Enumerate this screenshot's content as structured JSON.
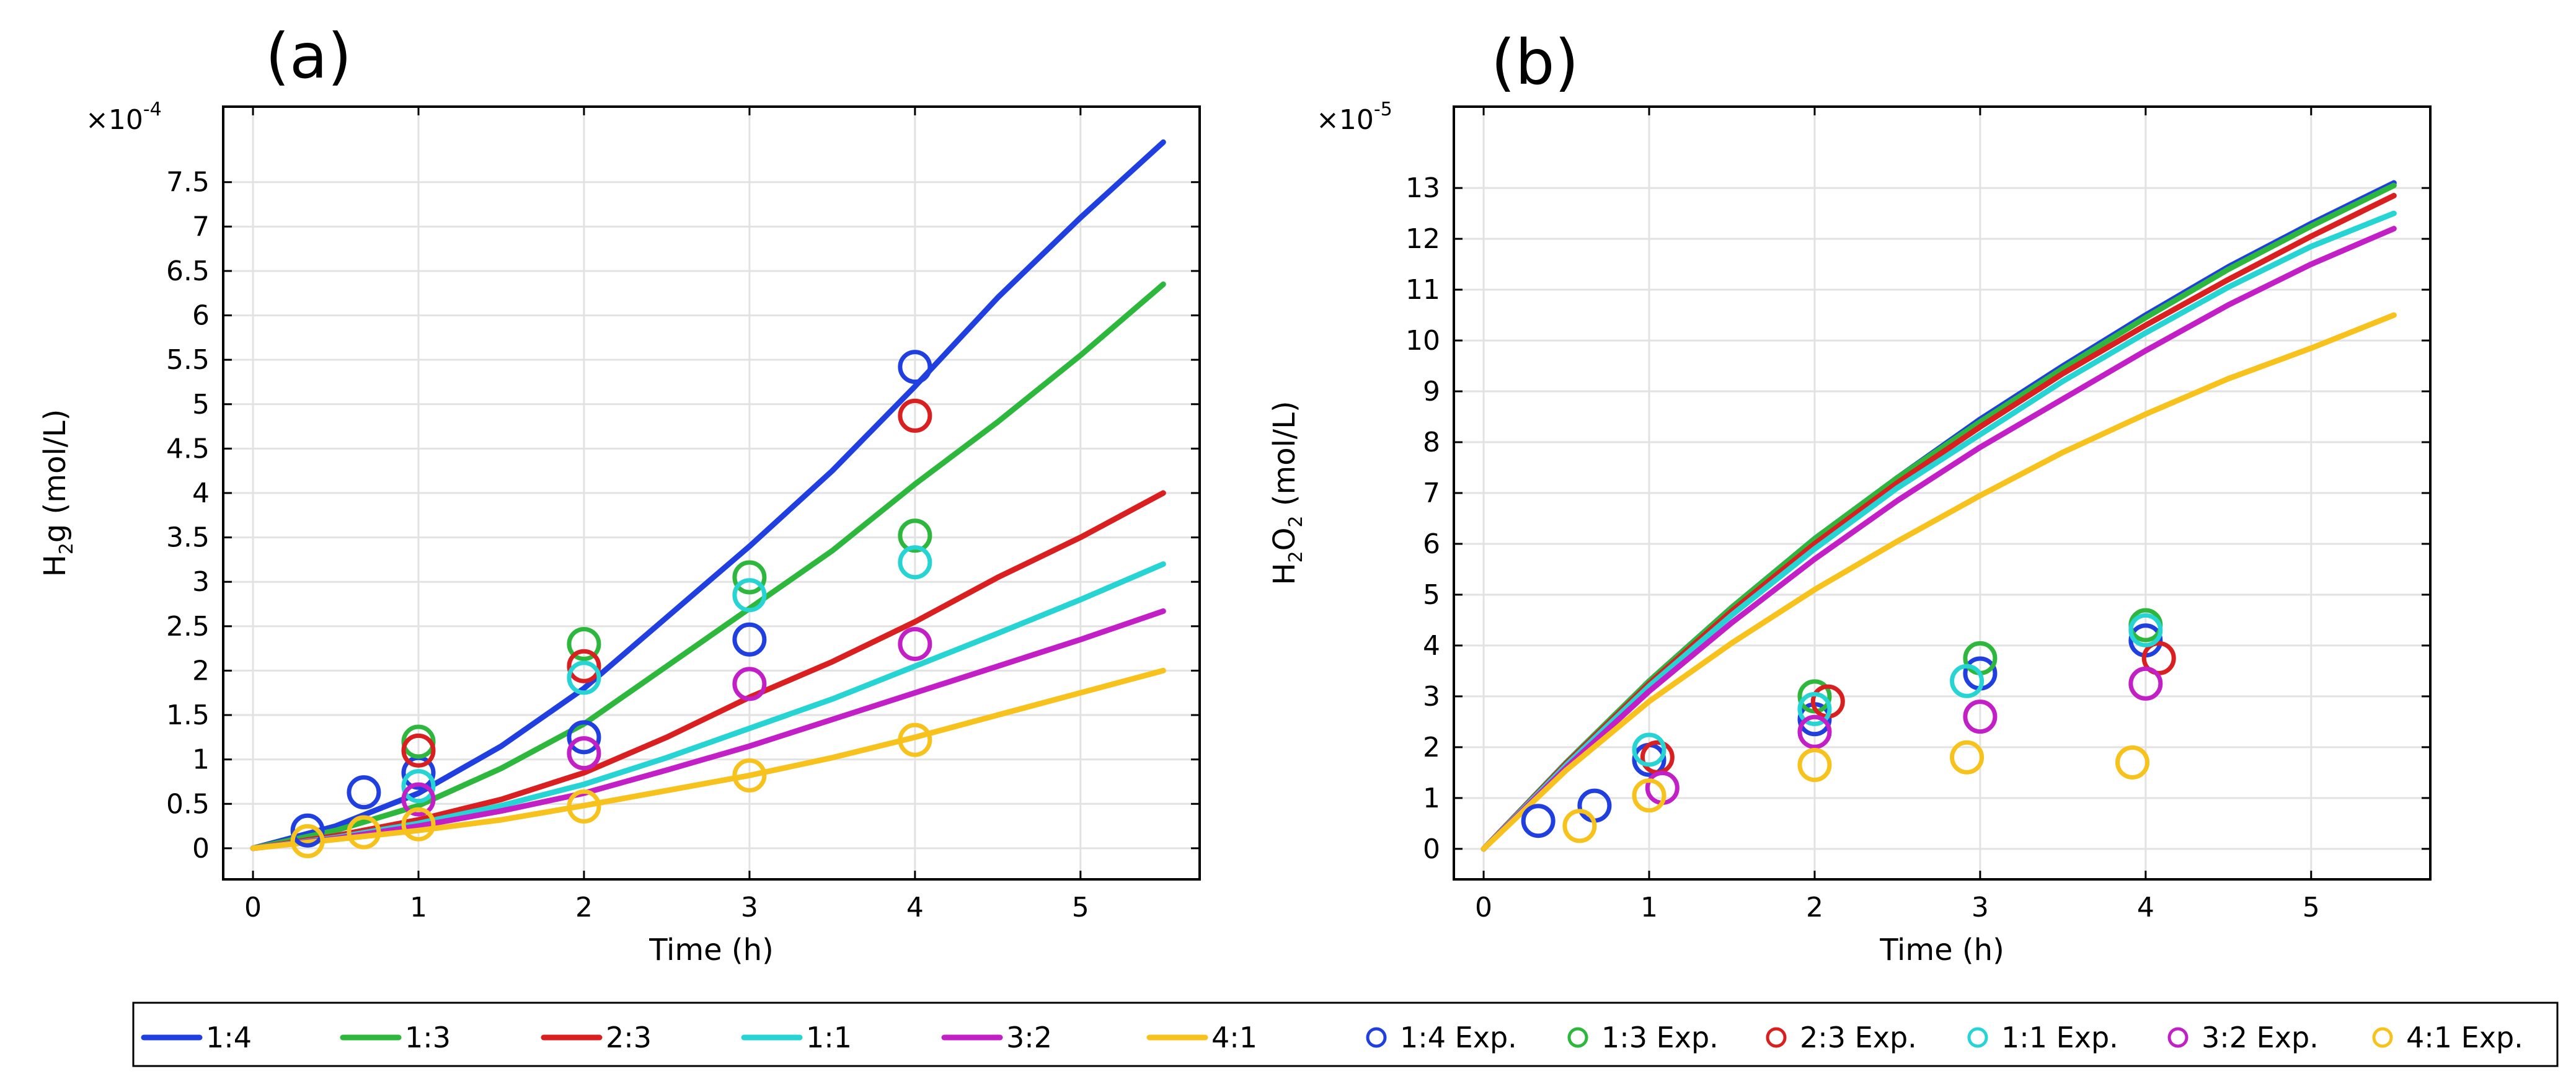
{
  "chart_data": [
    {
      "type": "line",
      "panel_label": "(a)",
      "xlabel": "Time (h)",
      "ylabel": {
        "base": "H",
        "sub": "2",
        "rest": "g (mol/L)"
      },
      "exponent": {
        "prefix": "×10",
        "power": "-4"
      },
      "xlim": [
        -0.18,
        5.72
      ],
      "ylim": [
        -0.35,
        8.35
      ],
      "xticks": [
        0,
        1,
        2,
        3,
        4,
        5
      ],
      "xtick_labels": [
        "0",
        "1",
        "2",
        "3",
        "4",
        "5"
      ],
      "yticks": [
        0,
        0.5,
        1,
        1.5,
        2,
        2.5,
        3,
        3.5,
        4,
        4.5,
        5,
        5.5,
        6,
        6.5,
        7,
        7.5
      ],
      "ytick_labels": [
        "0",
        "0.5",
        "1",
        "1.5",
        "2",
        "2.5",
        "3",
        "3.5",
        "4",
        "4.5",
        "5",
        "5.5",
        "6",
        "6.5",
        "7",
        "7.5"
      ],
      "grid": true,
      "series": [
        {
          "name": "1:4",
          "color": "#1f3fe0",
          "x": [
            0,
            0.5,
            1,
            1.5,
            2,
            2.5,
            3,
            3.5,
            4,
            4.5,
            5,
            5.5
          ],
          "values": [
            0,
            0.25,
            0.62,
            1.15,
            1.8,
            2.6,
            3.4,
            4.25,
            5.2,
            6.2,
            7.1,
            7.95
          ]
        },
        {
          "name": "1:3",
          "color": "#2db83d",
          "x": [
            0,
            0.5,
            1,
            1.5,
            2,
            2.5,
            3,
            3.5,
            4,
            4.5,
            5,
            5.5
          ],
          "values": [
            0,
            0.2,
            0.48,
            0.9,
            1.4,
            2.05,
            2.7,
            3.35,
            4.1,
            4.8,
            5.55,
            6.35
          ]
        },
        {
          "name": "2:3",
          "color": "#d91f1f",
          "x": [
            0,
            0.5,
            1,
            1.5,
            2,
            2.5,
            3,
            3.5,
            4,
            4.5,
            5,
            5.5
          ],
          "values": [
            0,
            0.14,
            0.32,
            0.55,
            0.85,
            1.25,
            1.7,
            2.1,
            2.55,
            3.05,
            3.5,
            4.0
          ]
        },
        {
          "name": "1:1",
          "color": "#26d4d4",
          "x": [
            0,
            0.5,
            1,
            1.5,
            2,
            2.5,
            3,
            3.5,
            4,
            4.5,
            5,
            5.5
          ],
          "values": [
            0,
            0.12,
            0.28,
            0.48,
            0.72,
            1.02,
            1.35,
            1.68,
            2.05,
            2.42,
            2.8,
            3.2
          ]
        },
        {
          "name": "3:2",
          "color": "#c21fc7",
          "x": [
            0,
            0.5,
            1,
            1.5,
            2,
            2.5,
            3,
            3.5,
            4,
            4.5,
            5,
            5.5
          ],
          "values": [
            0,
            0.11,
            0.25,
            0.42,
            0.62,
            0.88,
            1.15,
            1.45,
            1.75,
            2.05,
            2.35,
            2.67
          ]
        },
        {
          "name": "4:1",
          "color": "#f7c21b",
          "x": [
            0,
            0.5,
            1,
            1.5,
            2,
            2.5,
            3,
            3.5,
            4,
            4.5,
            5,
            5.5
          ],
          "values": [
            0,
            0.1,
            0.2,
            0.32,
            0.48,
            0.65,
            0.82,
            1.02,
            1.25,
            1.5,
            1.75,
            2.0
          ]
        }
      ],
      "experimental": [
        {
          "name": "1:4 Exp.",
          "color": "#1f3fe0",
          "x": [
            0.33,
            0.67,
            1,
            2,
            3,
            4
          ],
          "values": [
            0.2,
            0.63,
            0.85,
            1.25,
            2.35,
            5.42
          ]
        },
        {
          "name": "1:3 Exp.",
          "color": "#2db83d",
          "x": [
            1,
            2,
            3,
            4
          ],
          "values": [
            1.2,
            2.3,
            3.05,
            3.52
          ]
        },
        {
          "name": "2:3 Exp.",
          "color": "#d91f1f",
          "x": [
            1,
            2,
            4
          ],
          "values": [
            1.1,
            2.05,
            4.87
          ]
        },
        {
          "name": "1:1 Exp.",
          "color": "#26d4d4",
          "x": [
            1,
            2,
            3,
            4
          ],
          "values": [
            0.7,
            1.92,
            2.85,
            3.22
          ]
        },
        {
          "name": "3:2 Exp.",
          "color": "#c21fc7",
          "x": [
            1,
            2,
            3,
            4
          ],
          "values": [
            0.55,
            1.07,
            1.85,
            2.3
          ]
        },
        {
          "name": "4:1 Exp.",
          "color": "#f7c21b",
          "x": [
            0.33,
            0.67,
            1,
            2,
            3,
            4
          ],
          "values": [
            0.08,
            0.18,
            0.27,
            0.47,
            0.82,
            1.22
          ]
        }
      ]
    },
    {
      "type": "line",
      "panel_label": "(b)",
      "xlabel": "Time (h)",
      "ylabel": {
        "base": "H",
        "sub": "2",
        "mid": "O",
        "sub2": "2",
        "rest": " (mol/L)"
      },
      "exponent": {
        "prefix": "×10",
        "power": "-5"
      },
      "xlim": [
        -0.18,
        5.72
      ],
      "ylim": [
        -0.6,
        14.6
      ],
      "xticks": [
        0,
        1,
        2,
        3,
        4,
        5
      ],
      "xtick_labels": [
        "0",
        "1",
        "2",
        "3",
        "4",
        "5"
      ],
      "yticks": [
        0,
        1,
        2,
        3,
        4,
        5,
        6,
        7,
        8,
        9,
        10,
        11,
        12,
        13
      ],
      "ytick_labels": [
        "0",
        "1",
        "2",
        "3",
        "4",
        "5",
        "6",
        "7",
        "8",
        "9",
        "10",
        "11",
        "12",
        "13"
      ],
      "grid": true,
      "series": [
        {
          "name": "1:4",
          "color": "#1f3fe0",
          "x": [
            0,
            0.5,
            1,
            1.5,
            2,
            2.5,
            3,
            3.5,
            4,
            4.5,
            5,
            5.5
          ],
          "values": [
            0,
            1.7,
            3.3,
            4.75,
            6.1,
            7.3,
            8.45,
            9.5,
            10.5,
            11.45,
            12.3,
            13.1
          ]
        },
        {
          "name": "1:3",
          "color": "#2db83d",
          "x": [
            0,
            0.5,
            1,
            1.5,
            2,
            2.5,
            3,
            3.5,
            4,
            4.5,
            5,
            5.5
          ],
          "values": [
            0,
            1.7,
            3.3,
            4.75,
            6.1,
            7.3,
            8.4,
            9.45,
            10.45,
            11.4,
            12.25,
            13.05
          ]
        },
        {
          "name": "2:3",
          "color": "#d91f1f",
          "x": [
            0,
            0.5,
            1,
            1.5,
            2,
            2.5,
            3,
            3.5,
            4,
            4.5,
            5,
            5.5
          ],
          "values": [
            0,
            1.68,
            3.25,
            4.68,
            6.0,
            7.2,
            8.3,
            9.35,
            10.3,
            11.2,
            12.05,
            12.85
          ]
        },
        {
          "name": "1:1",
          "color": "#26d4d4",
          "x": [
            0,
            0.5,
            1,
            1.5,
            2,
            2.5,
            3,
            3.5,
            4,
            4.5,
            5,
            5.5
          ],
          "values": [
            0,
            1.65,
            3.2,
            4.6,
            5.9,
            7.1,
            8.15,
            9.2,
            10.15,
            11.05,
            11.85,
            12.5
          ]
        },
        {
          "name": "3:2",
          "color": "#c21fc7",
          "x": [
            0,
            0.5,
            1,
            1.5,
            2,
            2.5,
            3,
            3.5,
            4,
            4.5,
            5,
            5.5
          ],
          "values": [
            0,
            1.6,
            3.1,
            4.45,
            5.7,
            6.85,
            7.9,
            8.85,
            9.8,
            10.7,
            11.5,
            12.2
          ]
        },
        {
          "name": "4:1",
          "color": "#f7c21b",
          "x": [
            0,
            0.5,
            1,
            1.5,
            2,
            2.5,
            3,
            3.5,
            4,
            4.5,
            5,
            5.5
          ],
          "values": [
            0,
            1.55,
            2.9,
            4.05,
            5.1,
            6.05,
            6.95,
            7.8,
            8.55,
            9.25,
            9.85,
            10.5
          ]
        }
      ],
      "experimental": [
        {
          "name": "1:4 Exp.",
          "color": "#1f3fe0",
          "x": [
            0.33,
            0.67,
            1,
            2,
            3,
            4
          ],
          "values": [
            0.55,
            0.85,
            1.75,
            2.55,
            3.45,
            4.1
          ]
        },
        {
          "name": "1:3 Exp.",
          "color": "#2db83d",
          "x": [
            2,
            3,
            4
          ],
          "values": [
            3.0,
            3.75,
            4.4
          ]
        },
        {
          "name": "2:3 Exp.",
          "color": "#d91f1f",
          "x": [
            1.05,
            2.08,
            4.08
          ],
          "values": [
            1.8,
            2.9,
            3.75
          ]
        },
        {
          "name": "1:1 Exp.",
          "color": "#26d4d4",
          "x": [
            1,
            2,
            2.92,
            4
          ],
          "values": [
            1.95,
            2.75,
            3.3,
            4.3
          ]
        },
        {
          "name": "3:2 Exp.",
          "color": "#c21fc7",
          "x": [
            1.08,
            2,
            3,
            4
          ],
          "values": [
            1.2,
            2.3,
            2.6,
            3.25
          ]
        },
        {
          "name": "4:1 Exp.",
          "color": "#f7c21b",
          "x": [
            0.58,
            1,
            2,
            2.92,
            3.92
          ],
          "values": [
            0.45,
            1.05,
            1.65,
            1.8,
            1.7
          ]
        }
      ]
    }
  ],
  "legend": {
    "lines": [
      {
        "label": "1:4",
        "color": "#1f3fe0"
      },
      {
        "label": "1:3",
        "color": "#2db83d"
      },
      {
        "label": "2:3",
        "color": "#d91f1f"
      },
      {
        "label": "1:1",
        "color": "#26d4d4"
      },
      {
        "label": "3:2",
        "color": "#c21fc7"
      },
      {
        "label": "4:1",
        "color": "#f7c21b"
      }
    ],
    "markers": [
      {
        "label": "1:4 Exp.",
        "color": "#1f3fe0"
      },
      {
        "label": "1:3 Exp.",
        "color": "#2db83d"
      },
      {
        "label": "2:3 Exp.",
        "color": "#d91f1f"
      },
      {
        "label": "1:1 Exp.",
        "color": "#26d4d4"
      },
      {
        "label": "3:2 Exp.",
        "color": "#c21fc7"
      },
      {
        "label": "4:1 Exp.",
        "color": "#f7c21b"
      }
    ]
  }
}
